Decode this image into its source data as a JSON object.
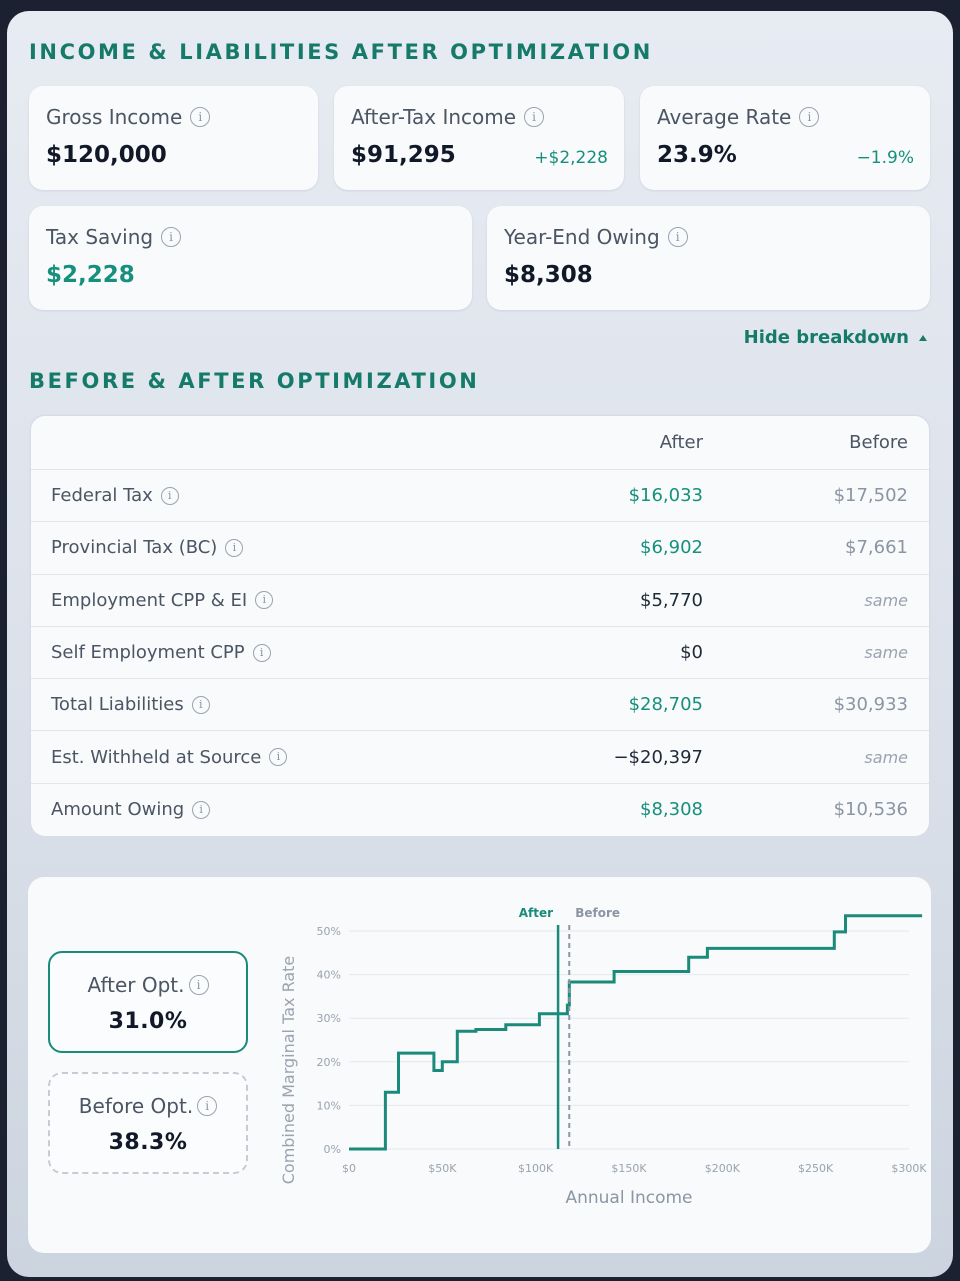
{
  "summary": {
    "title": "INCOME & LIABILITIES AFTER OPTIMIZATION",
    "gross_income": {
      "label": "Gross Income",
      "value": "$120,000"
    },
    "after_tax_income": {
      "label": "After-Tax Income",
      "value": "$91,295",
      "delta": "+$2,228"
    },
    "average_rate": {
      "label": "Average Rate",
      "value": "23.9%",
      "delta": "−1.9%"
    },
    "tax_saving": {
      "label": "Tax Saving",
      "value": "$2,228"
    },
    "year_end_owing": {
      "label": "Year-End Owing",
      "value": "$8,308"
    },
    "toggle_label": "Hide breakdown"
  },
  "breakdown": {
    "title": "BEFORE & AFTER OPTIMIZATION",
    "columns": {
      "after": "After",
      "before": "Before"
    },
    "rows": [
      {
        "label": "Federal Tax",
        "after": "$16,033",
        "before": "$17,502"
      },
      {
        "label": "Provincial Tax (BC)",
        "after": "$6,902",
        "before": "$7,661"
      },
      {
        "label": "Employment CPP & EI",
        "after": "$5,770",
        "before": "same"
      },
      {
        "label": "Self Employment CPP",
        "after": "$0",
        "before": "same"
      },
      {
        "label": "Total Liabilities",
        "after": "$28,705",
        "before": "$30,933"
      },
      {
        "label": "Est. Withheld at Source",
        "after": "−$20,397",
        "before": "same"
      },
      {
        "label": "Amount Owing",
        "after": "$8,308",
        "before": "$10,536"
      }
    ]
  },
  "marginal": {
    "after": {
      "label": "After Opt.",
      "value": "31.0%"
    },
    "before": {
      "label": "Before Opt.",
      "value": "38.3%"
    }
  },
  "chart_data": {
    "type": "line",
    "xlabel": "Annual Income",
    "ylabel": "Combined Marginal Tax Rate",
    "xlim": [
      0,
      300000
    ],
    "ylim": [
      0,
      50
    ],
    "x_ticks": [
      0,
      50000,
      100000,
      150000,
      200000,
      250000,
      300000
    ],
    "x_tick_labels": [
      "$0",
      "$50K",
      "$100K",
      "$150K",
      "$200K",
      "$250K",
      "$300K"
    ],
    "y_ticks": [
      0,
      10,
      20,
      30,
      40,
      50
    ],
    "y_tick_labels": [
      "0%",
      "10%",
      "20%",
      "30%",
      "40%",
      "50%"
    ],
    "grid": true,
    "color": "#1a8b7a",
    "series": [
      {
        "points": [
          [
            0,
            0
          ],
          [
            19500,
            0
          ],
          [
            19500,
            13
          ],
          [
            26500,
            13
          ],
          [
            26500,
            22
          ],
          [
            45500,
            22
          ],
          [
            45500,
            18
          ],
          [
            50000,
            18
          ],
          [
            50000,
            20
          ],
          [
            58000,
            20
          ],
          [
            58000,
            27
          ],
          [
            68000,
            27
          ],
          [
            68000,
            27.4
          ],
          [
            84000,
            27.4
          ],
          [
            84000,
            28.5
          ],
          [
            102000,
            28.5
          ],
          [
            102000,
            31
          ],
          [
            117000,
            31
          ],
          [
            117000,
            33
          ],
          [
            118000,
            33
          ],
          [
            118000,
            38.3
          ],
          [
            142000,
            38.3
          ],
          [
            142000,
            40.7
          ],
          [
            182000,
            40.7
          ],
          [
            182000,
            44
          ],
          [
            192000,
            44
          ],
          [
            192000,
            46
          ],
          [
            260000,
            46
          ],
          [
            260000,
            49.8
          ],
          [
            266000,
            49.8
          ],
          [
            266000,
            53.5
          ],
          [
            307000,
            53.5
          ]
        ]
      }
    ],
    "markers": [
      {
        "label": "After",
        "x": 112000,
        "color": "#1a8b7a",
        "style": "solid"
      },
      {
        "label": "Before",
        "x": 118000,
        "color": "#8b95a3",
        "style": "dashed"
      }
    ]
  }
}
